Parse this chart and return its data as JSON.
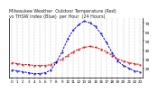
{
  "title": "Milwaukee Weather  Outdoor Temperature (Red)",
  "title2": "vs THSW Index (Blue)  per Hour  (24 Hours)",
  "hours": [
    0,
    1,
    2,
    3,
    4,
    5,
    6,
    7,
    8,
    9,
    10,
    11,
    12,
    13,
    14,
    15,
    16,
    17,
    18,
    19,
    20,
    21,
    22,
    23
  ],
  "temp_red": [
    26,
    25,
    24,
    24,
    23,
    23,
    23,
    24,
    27,
    30,
    34,
    38,
    41,
    43,
    44,
    43,
    41,
    38,
    34,
    30,
    28,
    26,
    25,
    24
  ],
  "thsw_blue": [
    18,
    17,
    16,
    15,
    14,
    14,
    15,
    18,
    27,
    38,
    52,
    62,
    68,
    72,
    70,
    66,
    58,
    48,
    37,
    28,
    23,
    20,
    17,
    16
  ],
  "red_color": "#dd0000",
  "blue_color": "#0000dd",
  "bg_color": "#ffffff",
  "grid_color": "#888888",
  "ylim_min": 10,
  "ylim_max": 75,
  "yticks": [
    20,
    30,
    40,
    50,
    60,
    70
  ],
  "title_fontsize": 3.5,
  "tick_fontsize": 3.0,
  "line_width": 0.7,
  "marker_size": 1.0
}
